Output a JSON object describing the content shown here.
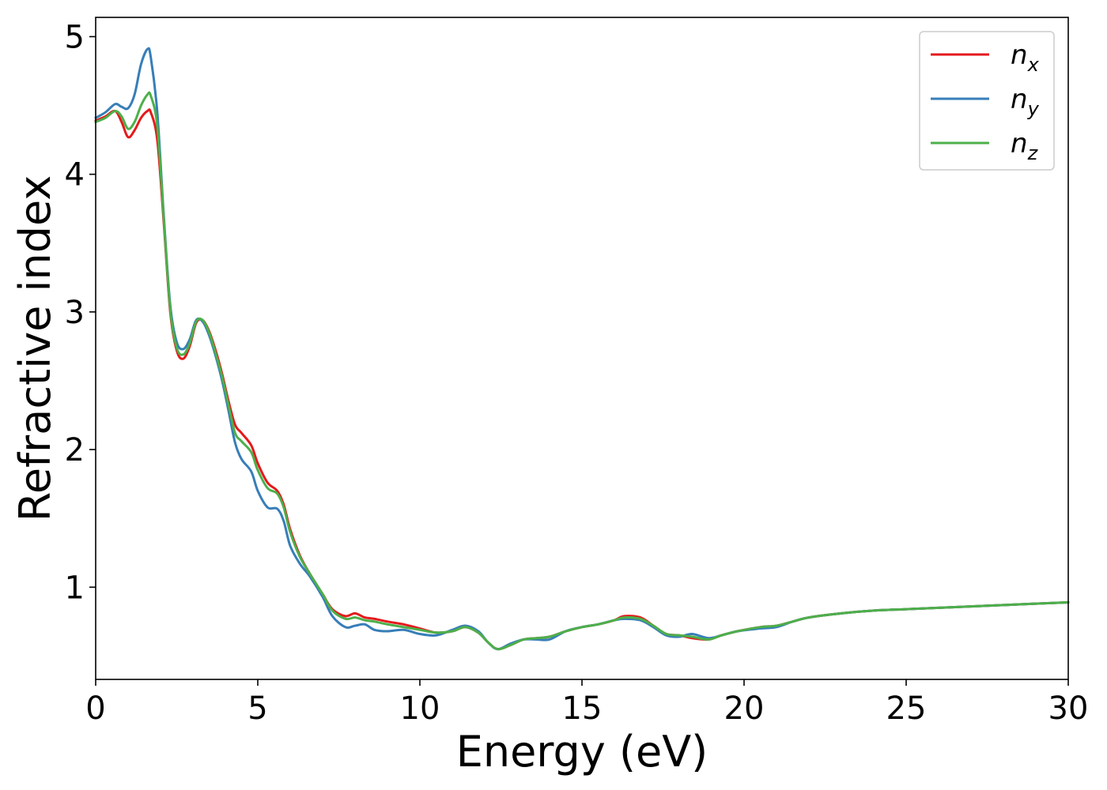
{
  "chart_data": {
    "type": "line",
    "xlabel": "Energy (eV)",
    "ylabel": "Refractive index",
    "xlim": [
      0,
      30
    ],
    "ylim": [
      0.33,
      5.14
    ],
    "xticks": [
      "0",
      "5",
      "10",
      "15",
      "20",
      "25",
      "30"
    ],
    "yticks": [
      "1",
      "2",
      "3",
      "4",
      "5"
    ],
    "grid": false,
    "legend_position": "top-right",
    "series": [
      {
        "name": "n_x",
        "label_base": "n",
        "label_sub": "x",
        "color": "#e41a1c",
        "x": [
          0,
          0.3,
          0.6,
          0.8,
          1.0,
          1.2,
          1.4,
          1.6,
          1.7,
          1.9,
          2.1,
          2.3,
          2.5,
          2.7,
          2.9,
          3.1,
          3.3,
          3.5,
          3.7,
          3.9,
          4.1,
          4.3,
          4.5,
          4.8,
          5.0,
          5.3,
          5.6,
          5.8,
          6.0,
          6.3,
          6.6,
          7.0,
          7.3,
          7.7,
          8.0,
          8.3,
          8.6,
          9.0,
          9.5,
          10.0,
          10.5,
          11.0,
          11.4,
          11.8,
          12.1,
          12.4,
          12.8,
          13.2,
          13.6,
          14.0,
          14.5,
          15.0,
          15.5,
          16.0,
          16.3,
          16.8,
          17.2,
          17.6,
          18.0,
          18.4,
          18.9,
          19.3,
          19.8,
          20.5,
          21.0,
          21.5,
          22.0,
          23.0,
          24.0,
          25.0,
          26.0,
          27.0,
          28.0,
          29.0,
          30.0
        ],
        "y": [
          4.39,
          4.42,
          4.46,
          4.38,
          4.27,
          4.32,
          4.41,
          4.46,
          4.45,
          4.25,
          3.65,
          3.0,
          2.72,
          2.66,
          2.75,
          2.92,
          2.94,
          2.86,
          2.72,
          2.55,
          2.35,
          2.18,
          2.12,
          2.03,
          1.9,
          1.76,
          1.7,
          1.6,
          1.42,
          1.23,
          1.1,
          0.95,
          0.84,
          0.79,
          0.81,
          0.78,
          0.77,
          0.75,
          0.73,
          0.7,
          0.67,
          0.68,
          0.71,
          0.67,
          0.6,
          0.55,
          0.58,
          0.62,
          0.63,
          0.64,
          0.68,
          0.71,
          0.73,
          0.76,
          0.79,
          0.78,
          0.72,
          0.66,
          0.65,
          0.63,
          0.62,
          0.65,
          0.68,
          0.71,
          0.72,
          0.75,
          0.78,
          0.81,
          0.83,
          0.84,
          0.85,
          0.86,
          0.87,
          0.88,
          0.89
        ]
      },
      {
        "name": "n_y",
        "label_base": "n",
        "label_sub": "y",
        "color": "#377eb8",
        "x": [
          0,
          0.3,
          0.6,
          0.8,
          1.0,
          1.2,
          1.4,
          1.6,
          1.7,
          1.9,
          2.1,
          2.3,
          2.5,
          2.7,
          2.9,
          3.1,
          3.3,
          3.5,
          3.7,
          3.9,
          4.1,
          4.3,
          4.5,
          4.8,
          5.0,
          5.3,
          5.6,
          5.8,
          6.0,
          6.3,
          6.6,
          7.0,
          7.3,
          7.7,
          8.0,
          8.3,
          8.6,
          9.0,
          9.5,
          10.0,
          10.5,
          11.0,
          11.4,
          11.8,
          12.1,
          12.4,
          12.8,
          13.2,
          13.6,
          14.0,
          14.5,
          15.0,
          15.5,
          16.0,
          16.3,
          16.8,
          17.2,
          17.6,
          18.0,
          18.4,
          18.9,
          19.3,
          19.8,
          20.5,
          21.0,
          21.5,
          22.0,
          23.0,
          24.0,
          25.0,
          26.0,
          27.0,
          28.0,
          29.0,
          30.0
        ],
        "y": [
          4.41,
          4.45,
          4.51,
          4.49,
          4.48,
          4.58,
          4.8,
          4.91,
          4.85,
          4.45,
          3.7,
          3.05,
          2.78,
          2.73,
          2.8,
          2.94,
          2.93,
          2.83,
          2.68,
          2.5,
          2.28,
          2.05,
          1.93,
          1.84,
          1.7,
          1.58,
          1.57,
          1.48,
          1.3,
          1.17,
          1.08,
          0.93,
          0.79,
          0.71,
          0.72,
          0.73,
          0.69,
          0.68,
          0.69,
          0.66,
          0.65,
          0.69,
          0.72,
          0.68,
          0.6,
          0.55,
          0.59,
          0.62,
          0.62,
          0.62,
          0.68,
          0.71,
          0.73,
          0.76,
          0.77,
          0.76,
          0.71,
          0.65,
          0.64,
          0.66,
          0.63,
          0.65,
          0.68,
          0.7,
          0.71,
          0.75,
          0.78,
          0.81,
          0.83,
          0.84,
          0.85,
          0.86,
          0.87,
          0.88,
          0.89
        ]
      },
      {
        "name": "n_z",
        "label_base": "n",
        "label_sub": "z",
        "color": "#4daf4a",
        "x": [
          0,
          0.3,
          0.6,
          0.8,
          1.0,
          1.2,
          1.4,
          1.6,
          1.7,
          1.9,
          2.1,
          2.3,
          2.5,
          2.7,
          2.9,
          3.1,
          3.3,
          3.5,
          3.7,
          3.9,
          4.1,
          4.3,
          4.5,
          4.8,
          5.0,
          5.3,
          5.6,
          5.8,
          6.0,
          6.3,
          6.6,
          7.0,
          7.3,
          7.7,
          8.0,
          8.3,
          8.6,
          9.0,
          9.5,
          10.0,
          10.5,
          11.0,
          11.4,
          11.8,
          12.1,
          12.4,
          12.8,
          13.2,
          13.6,
          14.0,
          14.5,
          15.0,
          15.5,
          16.0,
          16.3,
          16.8,
          17.2,
          17.6,
          18.0,
          18.4,
          18.9,
          19.3,
          19.8,
          20.5,
          21.0,
          21.5,
          22.0,
          23.0,
          24.0,
          25.0,
          26.0,
          27.0,
          28.0,
          29.0,
          30.0
        ],
        "y": [
          4.38,
          4.41,
          4.46,
          4.42,
          4.33,
          4.38,
          4.5,
          4.58,
          4.57,
          4.35,
          3.68,
          3.02,
          2.74,
          2.69,
          2.77,
          2.93,
          2.94,
          2.85,
          2.7,
          2.53,
          2.32,
          2.12,
          2.06,
          1.98,
          1.85,
          1.72,
          1.68,
          1.58,
          1.4,
          1.22,
          1.1,
          0.95,
          0.83,
          0.77,
          0.78,
          0.76,
          0.75,
          0.73,
          0.71,
          0.69,
          0.67,
          0.68,
          0.71,
          0.67,
          0.6,
          0.55,
          0.58,
          0.62,
          0.63,
          0.64,
          0.68,
          0.71,
          0.73,
          0.76,
          0.78,
          0.77,
          0.72,
          0.66,
          0.65,
          0.64,
          0.62,
          0.65,
          0.68,
          0.71,
          0.72,
          0.75,
          0.78,
          0.81,
          0.83,
          0.84,
          0.85,
          0.86,
          0.87,
          0.88,
          0.89
        ]
      }
    ]
  }
}
